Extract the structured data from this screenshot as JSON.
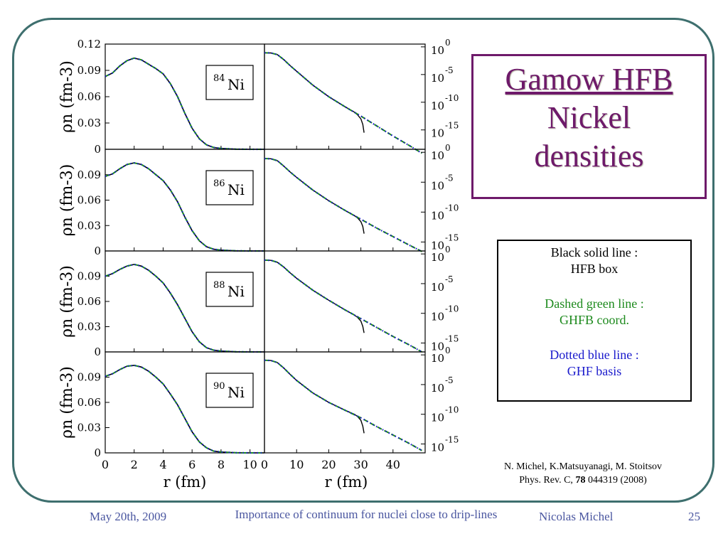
{
  "title_box": {
    "line1": "Gamow HFB",
    "line2": "Nickel",
    "line3": "densities"
  },
  "legend": {
    "black_line1": "Black solid line :",
    "black_line2": "HFB box",
    "green_line1": "Dashed green line :",
    "green_line2": "GHFB coord.",
    "blue_line1": "Dotted blue line :",
    "blue_line2": "GHF basis"
  },
  "reference": {
    "line1": "N. Michel, K.Matsuyanagi, M. Stoitsov",
    "line2_prefix": "Phys. Rev. C,",
    "line2_volume": "78",
    "line2_suffix": "044319 (2008)"
  },
  "footer": {
    "date": "May 20th, 2009",
    "title": "Importance of continuum for nuclei close to drip-lines",
    "author": "Nicolas Michel",
    "page": "25"
  },
  "colors": {
    "frame": "#3e6f6e",
    "title": "#6e1a6a",
    "hfb_box": "#000000",
    "ghfb_coord": "#1d8a1d",
    "ghf_basis": "#1a1acc",
    "footer": "#4a56a0"
  },
  "chart_data": [
    {
      "type": "line",
      "nucleus_mass": "84",
      "nucleus_symbol": "Ni",
      "left": {
        "ylabel": "ρn (fm-3)",
        "xlabel": "r (fm)",
        "yticks": [
          "0.12",
          "0.09",
          "0.06",
          "0.03",
          "0"
        ],
        "xticks": [
          "0",
          "2",
          "4",
          "6",
          "8",
          "10"
        ],
        "xlim": [
          0,
          11
        ],
        "ylim": [
          0,
          0.12
        ],
        "x": [
          0,
          0.5,
          1,
          1.5,
          2,
          2.5,
          3,
          3.5,
          4,
          4.5,
          5,
          5.5,
          6,
          6.5,
          7,
          7.5,
          8,
          9,
          10,
          11
        ],
        "y": [
          0.083,
          0.087,
          0.095,
          0.101,
          0.104,
          0.102,
          0.097,
          0.092,
          0.086,
          0.075,
          0.06,
          0.041,
          0.024,
          0.012,
          0.005,
          0.002,
          0.001,
          0.0002,
          0,
          0
        ]
      },
      "right": {
        "ylog_ticks": [
          "0",
          "-5",
          "-10",
          "-15"
        ],
        "xlim": [
          0,
          50
        ],
        "ylog_range": [
          -18.5,
          0.5
        ],
        "x": [
          0,
          2,
          4,
          6,
          8,
          10,
          15,
          20,
          25,
          30,
          35,
          40,
          45,
          49
        ],
        "log10_y": [
          -1.08,
          -1.1,
          -1.4,
          -2.3,
          -3.4,
          -4.4,
          -6.9,
          -9.0,
          -10.8,
          -12.5,
          -14.3,
          -16.1,
          -17.8,
          -19.2
        ],
        "box_tail": {
          "x": [
            28,
            29,
            30,
            30.6,
            31
          ],
          "log10_y": [
            -11.8,
            -12.3,
            -13.0,
            -14.0,
            -15.5
          ]
        }
      }
    },
    {
      "type": "line",
      "nucleus_mass": "86",
      "nucleus_symbol": "Ni",
      "left": {
        "ylabel": "ρn (fm-3)",
        "xlabel": "r (fm)",
        "yticks": [
          "0.09",
          "0.06",
          "0.03",
          "0"
        ],
        "xticks": [
          "0",
          "2",
          "4",
          "6",
          "8",
          "10"
        ],
        "xlim": [
          0,
          11
        ],
        "ylim": [
          0,
          0.12
        ],
        "x": [
          0,
          0.5,
          1,
          1.5,
          2,
          2.5,
          3,
          3.5,
          4,
          4.5,
          5,
          5.5,
          6,
          6.5,
          7,
          7.5,
          8,
          9,
          10,
          11
        ],
        "y": [
          0.088,
          0.091,
          0.097,
          0.102,
          0.104,
          0.102,
          0.097,
          0.09,
          0.083,
          0.072,
          0.058,
          0.04,
          0.024,
          0.012,
          0.005,
          0.002,
          0.001,
          0.0002,
          0,
          0
        ]
      },
      "right": {
        "ylog_ticks": [
          "0",
          "-5",
          "-10",
          "-15"
        ],
        "xlim": [
          0,
          50
        ],
        "ylog_range": [
          -16.5,
          0.5
        ],
        "x": [
          0,
          2,
          4,
          6,
          8,
          10,
          15,
          20,
          25,
          30,
          35,
          40,
          45,
          49
        ],
        "log10_y": [
          -1.05,
          -1.08,
          -1.4,
          -2.3,
          -3.3,
          -4.2,
          -6.3,
          -8.1,
          -9.7,
          -11.2,
          -12.7,
          -14.1,
          -15.5,
          -16.6
        ],
        "box_tail": {
          "x": [
            28,
            29,
            30,
            30.6,
            31
          ],
          "log10_y": [
            -10.6,
            -11.0,
            -11.6,
            -12.4,
            -13.6
          ]
        }
      }
    },
    {
      "type": "line",
      "nucleus_mass": "88",
      "nucleus_symbol": "Ni",
      "left": {
        "ylabel": "ρn (fm-3)",
        "xlabel": "r (fm)",
        "yticks": [
          "0.09",
          "0.06",
          "0.03",
          "0"
        ],
        "xticks": [
          "0",
          "2",
          "4",
          "6",
          "8",
          "10"
        ],
        "xlim": [
          0,
          11
        ],
        "ylim": [
          0,
          0.12
        ],
        "x": [
          0,
          0.5,
          1,
          1.5,
          2,
          2.5,
          3,
          3.5,
          4,
          4.5,
          5,
          5.5,
          6,
          6.5,
          7,
          7.5,
          8,
          9,
          10,
          11
        ],
        "y": [
          0.09,
          0.093,
          0.098,
          0.102,
          0.104,
          0.102,
          0.097,
          0.09,
          0.082,
          0.07,
          0.056,
          0.04,
          0.024,
          0.012,
          0.005,
          0.002,
          0.001,
          0.0002,
          0,
          0
        ]
      },
      "right": {
        "ylog_ticks": [
          "0",
          "-5",
          "-10",
          "-15"
        ],
        "xlim": [
          0,
          50
        ],
        "ylog_range": [
          -16.5,
          0.5
        ],
        "x": [
          0,
          2,
          4,
          6,
          8,
          10,
          15,
          20,
          25,
          30,
          35,
          40,
          45,
          49
        ],
        "log10_y": [
          -1.05,
          -1.08,
          -1.4,
          -2.2,
          -3.2,
          -4.1,
          -6.1,
          -7.8,
          -9.4,
          -10.9,
          -12.4,
          -13.9,
          -15.3,
          -16.5
        ],
        "box_tail": {
          "x": [
            28,
            29,
            30,
            30.6,
            31
          ],
          "log10_y": [
            -10.3,
            -10.7,
            -11.3,
            -12.2,
            -13.3
          ]
        }
      }
    },
    {
      "type": "line",
      "nucleus_mass": "90",
      "nucleus_symbol": "Ni",
      "left": {
        "ylabel": "ρn (fm-3)",
        "xlabel": "r (fm)",
        "yticks": [
          "0.09",
          "0.06",
          "0.03",
          "0"
        ],
        "xticks": [
          "0",
          "2",
          "4",
          "6",
          "8",
          "10"
        ],
        "xlim": [
          0,
          11
        ],
        "ylim": [
          0,
          0.12
        ],
        "x": [
          0,
          0.5,
          1,
          1.5,
          2,
          2.5,
          3,
          3.5,
          4,
          4.5,
          5,
          5.5,
          6,
          6.5,
          7,
          7.5,
          8,
          9,
          10,
          11
        ],
        "y": [
          0.091,
          0.094,
          0.099,
          0.103,
          0.104,
          0.102,
          0.097,
          0.09,
          0.082,
          0.07,
          0.057,
          0.041,
          0.025,
          0.013,
          0.006,
          0.002,
          0.001,
          0.0002,
          0,
          0
        ]
      },
      "right": {
        "ylog_ticks": [
          "0",
          "-5",
          "-10",
          "-15"
        ],
        "xticks": [
          "0",
          "10",
          "20",
          "30",
          "40"
        ],
        "xlabel": "r (fm)",
        "xlim": [
          0,
          50
        ],
        "ylog_range": [
          -16.5,
          0.5
        ],
        "x": [
          0,
          2,
          4,
          6,
          8,
          10,
          15,
          20,
          25,
          30,
          35,
          40,
          45,
          49
        ],
        "log10_y": [
          -0.9,
          -0.95,
          -1.3,
          -2.2,
          -3.3,
          -4.3,
          -6.4,
          -8.0,
          -9.3,
          -10.6,
          -12.1,
          -13.5,
          -14.9,
          -16.1
        ],
        "box_tail": {
          "x": [
            28,
            29,
            30,
            30.6,
            31
          ],
          "log10_y": [
            -10.0,
            -10.4,
            -11.0,
            -12.0,
            -13.2
          ]
        }
      }
    }
  ]
}
